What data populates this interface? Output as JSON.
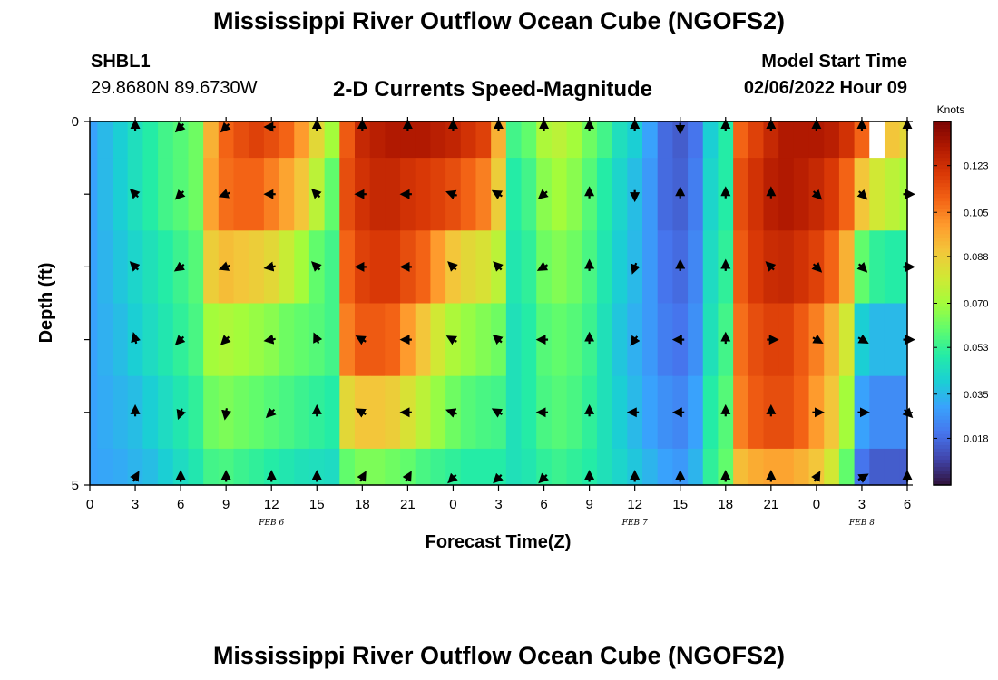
{
  "header": {
    "title": "Mississippi River Outflow Ocean Cube (NGOFS2)",
    "station_id": "SHBL1",
    "station_coords": "29.8680N  89.6730W",
    "subtitle": "2-D Currents Speed-Magnitude",
    "model_start_label": "Model Start Time",
    "model_start_value": "02/06/2022 Hour 09"
  },
  "footer": {
    "title": "Mississippi River Outflow Ocean Cube (NGOFS2)"
  },
  "chart_data": {
    "type": "heatmap",
    "title": "2-D Currents Speed-Magnitude",
    "xlabel": "Forecast Time(Z)",
    "ylabel": "Depth (ft)",
    "x_range": [
      0,
      54
    ],
    "y_range": [
      0,
      5
    ],
    "x_ticks": [
      0,
      3,
      6,
      9,
      12,
      15,
      18,
      21,
      24,
      27,
      30,
      33,
      36,
      39,
      42,
      45,
      48,
      51,
      54
    ],
    "x_tick_labels": [
      "0",
      "3",
      "6",
      "9",
      "12",
      "15",
      "18",
      "21",
      "0",
      "3",
      "6",
      "9",
      "12",
      "15",
      "18",
      "21",
      "0",
      "3",
      "6"
    ],
    "y_ticks": [
      0,
      1,
      2,
      3,
      4,
      5
    ],
    "y_tick_labels": [
      "0",
      "",
      "",
      "",
      "",
      "5"
    ],
    "date_labels": [
      {
        "x": 12,
        "label": "FEB 6"
      },
      {
        "x": 36,
        "label": "FEB 7"
      },
      {
        "x": 51,
        "label": "FEB 8"
      }
    ],
    "colorbar": {
      "label": "Knots",
      "min": 0.0,
      "max": 0.14,
      "ticks": [
        0.018,
        0.035,
        0.053,
        0.07,
        0.088,
        0.105,
        0.123
      ],
      "tick_labels": [
        "0.018",
        "0.035",
        "0.053",
        "0.070",
        "0.088",
        "0.105",
        "0.123"
      ],
      "colors": [
        "#30123b",
        "#4145ab",
        "#4675ed",
        "#39a2fc",
        "#1bcfd4",
        "#24eca6",
        "#61fc6c",
        "#a4fc3b",
        "#d1e834",
        "#f3c63a",
        "#fe9b2d",
        "#f36315",
        "#d93806",
        "#b11901",
        "#7a0403"
      ]
    },
    "x_hours": [
      0,
      1,
      2,
      3,
      4,
      5,
      6,
      7,
      8,
      9,
      10,
      11,
      12,
      13,
      14,
      15,
      16,
      17,
      18,
      19,
      20,
      21,
      22,
      23,
      24,
      25,
      26,
      27,
      28,
      29,
      30,
      31,
      32,
      33,
      34,
      35,
      36,
      37,
      38,
      39,
      40,
      41,
      42,
      43,
      44,
      45,
      46,
      47,
      48,
      49,
      50,
      51,
      52,
      53,
      54
    ],
    "depth_layers": [
      {
        "depth": "0-0.5 ft",
        "speeds": [
          0.03,
          0.035,
          0.04,
          0.045,
          0.05,
          0.055,
          0.058,
          0.062,
          0.095,
          0.11,
          0.115,
          0.118,
          0.115,
          0.11,
          0.1,
          0.085,
          0.07,
          0.112,
          0.125,
          0.128,
          0.13,
          0.13,
          0.13,
          0.128,
          0.126,
          0.122,
          0.118,
          0.095,
          0.055,
          0.06,
          0.072,
          0.075,
          0.07,
          0.062,
          0.055,
          0.045,
          0.04,
          0.03,
          0.018,
          0.015,
          0.02,
          0.04,
          0.05,
          0.11,
          0.118,
          0.125,
          0.13,
          0.13,
          0.13,
          0.128,
          0.122,
          0.11,
          0.098,
          0.09,
          0.085
        ]
      },
      {
        "depth": "0.5-1.5 ft",
        "speeds": [
          0.03,
          0.035,
          0.04,
          0.045,
          0.05,
          0.055,
          0.058,
          0.062,
          0.098,
          0.108,
          0.11,
          0.11,
          0.105,
          0.098,
          0.09,
          0.075,
          0.06,
          0.115,
          0.122,
          0.125,
          0.125,
          0.122,
          0.12,
          0.118,
          0.115,
          0.11,
          0.105,
          0.088,
          0.05,
          0.055,
          0.066,
          0.07,
          0.066,
          0.058,
          0.05,
          0.042,
          0.036,
          0.028,
          0.018,
          0.016,
          0.022,
          0.042,
          0.05,
          0.115,
          0.122,
          0.128,
          0.13,
          0.128,
          0.125,
          0.12,
          0.11,
          0.09,
          0.08,
          0.075,
          0.07
        ]
      },
      {
        "depth": "1.5-2.5 ft",
        "speeds": [
          0.03,
          0.034,
          0.038,
          0.042,
          0.046,
          0.05,
          0.054,
          0.058,
          0.088,
          0.092,
          0.09,
          0.088,
          0.085,
          0.078,
          0.07,
          0.06,
          0.055,
          0.11,
          0.118,
          0.12,
          0.12,
          0.115,
          0.11,
          0.1,
          0.09,
          0.085,
          0.082,
          0.075,
          0.048,
          0.052,
          0.062,
          0.065,
          0.062,
          0.056,
          0.048,
          0.04,
          0.035,
          0.028,
          0.02,
          0.018,
          0.024,
          0.044,
          0.052,
          0.112,
          0.12,
          0.124,
          0.125,
          0.122,
          0.118,
          0.11,
          0.095,
          0.06,
          0.052,
          0.05,
          0.05
        ]
      },
      {
        "depth": "2.5-3.5 ft",
        "speeds": [
          0.03,
          0.033,
          0.036,
          0.04,
          0.044,
          0.048,
          0.052,
          0.056,
          0.07,
          0.072,
          0.07,
          0.068,
          0.066,
          0.062,
          0.06,
          0.058,
          0.055,
          0.105,
          0.112,
          0.112,
          0.11,
          0.1,
          0.09,
          0.08,
          0.072,
          0.068,
          0.065,
          0.062,
          0.046,
          0.05,
          0.058,
          0.06,
          0.058,
          0.054,
          0.046,
          0.038,
          0.033,
          0.028,
          0.022,
          0.02,
          0.026,
          0.046,
          0.055,
          0.108,
          0.115,
          0.118,
          0.118,
          0.112,
          0.105,
          0.095,
          0.08,
          0.04,
          0.035,
          0.035,
          0.035
        ]
      },
      {
        "depth": "3.5-4.5 ft",
        "speeds": [
          0.03,
          0.032,
          0.034,
          0.036,
          0.04,
          0.044,
          0.048,
          0.052,
          0.062,
          0.064,
          0.062,
          0.06,
          0.058,
          0.056,
          0.054,
          0.052,
          0.05,
          0.085,
          0.09,
          0.09,
          0.088,
          0.082,
          0.075,
          0.068,
          0.062,
          0.058,
          0.056,
          0.055,
          0.046,
          0.05,
          0.056,
          0.058,
          0.056,
          0.052,
          0.046,
          0.04,
          0.035,
          0.03,
          0.026,
          0.024,
          0.03,
          0.05,
          0.058,
          0.105,
          0.112,
          0.115,
          0.115,
          0.11,
          0.1,
          0.09,
          0.07,
          0.03,
          0.025,
          0.025,
          0.025
        ]
      },
      {
        "depth": "4.5-5 ft",
        "speeds": [
          0.03,
          0.031,
          0.032,
          0.034,
          0.036,
          0.04,
          0.044,
          0.048,
          0.055,
          0.056,
          0.054,
          0.052,
          0.05,
          0.048,
          0.046,
          0.045,
          0.044,
          0.06,
          0.064,
          0.064,
          0.062,
          0.06,
          0.056,
          0.054,
          0.052,
          0.05,
          0.05,
          0.05,
          0.046,
          0.048,
          0.052,
          0.054,
          0.052,
          0.05,
          0.046,
          0.042,
          0.038,
          0.034,
          0.03,
          0.028,
          0.034,
          0.052,
          0.06,
          0.092,
          0.096,
          0.098,
          0.098,
          0.095,
          0.09,
          0.08,
          0.06,
          0.02,
          0.015,
          0.015,
          0.015
        ]
      }
    ],
    "vector_hours": [
      3,
      6,
      9,
      12,
      15,
      18,
      21,
      24,
      27,
      30,
      33,
      36,
      39,
      42,
      45,
      48,
      51,
      54
    ],
    "vector_directions_deg": [
      [
        0,
        225,
        225,
        270,
        0,
        0,
        0,
        0,
        0,
        0,
        0,
        0,
        180,
        0,
        0,
        0,
        0,
        0
      ],
      [
        315,
        225,
        250,
        270,
        315,
        270,
        270,
        290,
        300,
        230,
        0,
        180,
        0,
        0,
        0,
        135,
        135,
        90
      ],
      [
        315,
        235,
        250,
        260,
        315,
        270,
        270,
        315,
        315,
        240,
        0,
        200,
        0,
        0,
        315,
        135,
        135,
        90
      ],
      [
        345,
        225,
        225,
        260,
        335,
        300,
        270,
        300,
        310,
        270,
        0,
        215,
        270,
        0,
        90,
        120,
        120,
        90
      ],
      [
        0,
        200,
        190,
        225,
        0,
        300,
        270,
        290,
        300,
        270,
        0,
        270,
        270,
        0,
        0,
        90,
        90,
        135
      ],
      [
        30,
        0,
        0,
        0,
        0,
        30,
        30,
        225,
        225,
        225,
        0,
        0,
        0,
        0,
        0,
        30,
        60,
        0
      ]
    ],
    "missing_data": [
      {
        "x_start": 51.5,
        "x_end": 52.5,
        "y_start": 0,
        "y_end": 0.5
      }
    ]
  }
}
